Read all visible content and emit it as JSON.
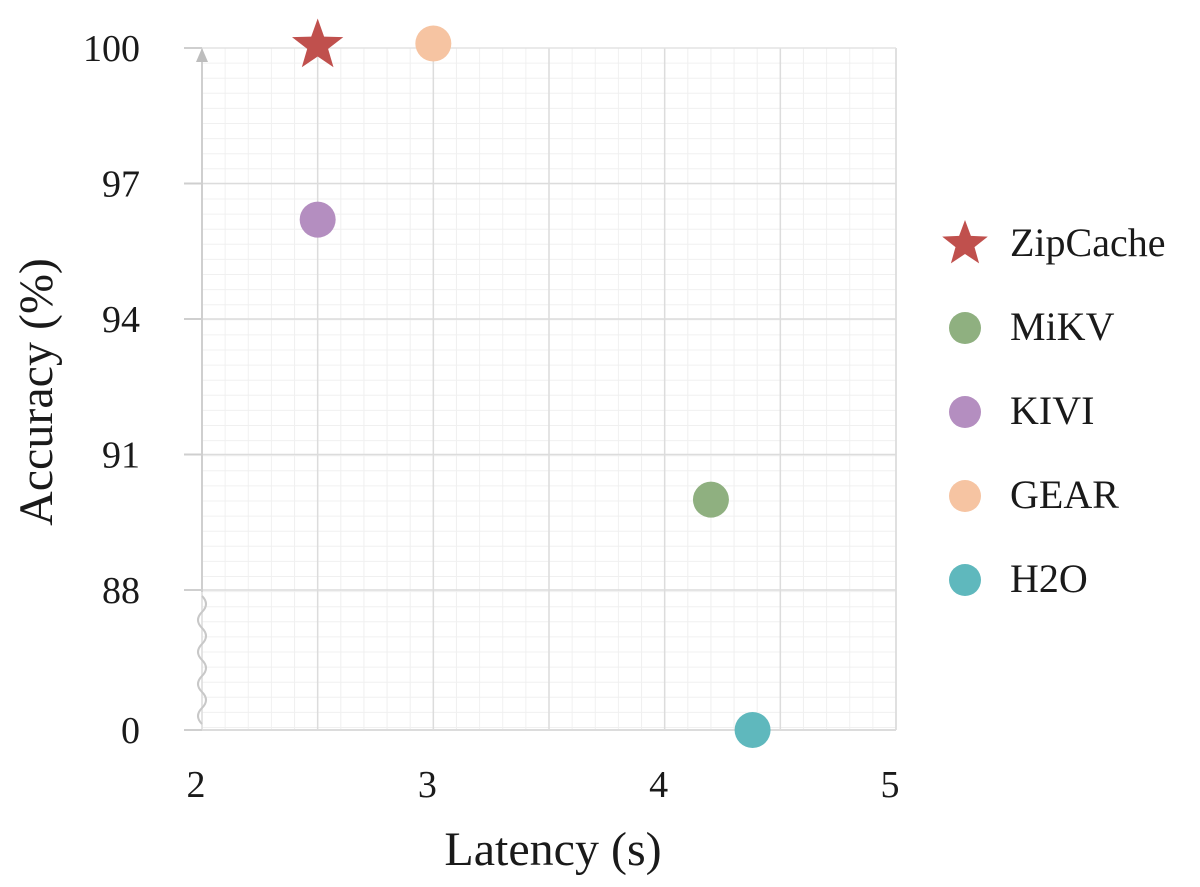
{
  "chart_data": {
    "type": "scatter",
    "xlabel": "Latency (s)",
    "ylabel": "Accuracy (%)",
    "xlim": [
      2,
      5
    ],
    "x_ticks": [
      "2",
      "3",
      "4",
      "5"
    ],
    "y_ticks": [
      "100",
      "97",
      "94",
      "91",
      "88",
      "0"
    ],
    "y_axis_break": "between 0 and 88",
    "grid": true,
    "legend_position": "right",
    "series": [
      {
        "name": "ZipCache",
        "marker": "star",
        "color": "#c0504d",
        "x": 2.5,
        "y": 100.1
      },
      {
        "name": "MiKV",
        "marker": "circle",
        "color": "#8fb080",
        "x": 4.2,
        "y": 90.0
      },
      {
        "name": "KIVI",
        "marker": "circle",
        "color": "#b48ec0",
        "x": 2.5,
        "y": 96.2
      },
      {
        "name": "GEAR",
        "marker": "circle",
        "color": "#f6c4a2",
        "x": 3.0,
        "y": 100.1
      },
      {
        "name": "H2O",
        "marker": "circle",
        "color": "#5fb8bd",
        "x": 4.38,
        "y": 0
      }
    ]
  }
}
